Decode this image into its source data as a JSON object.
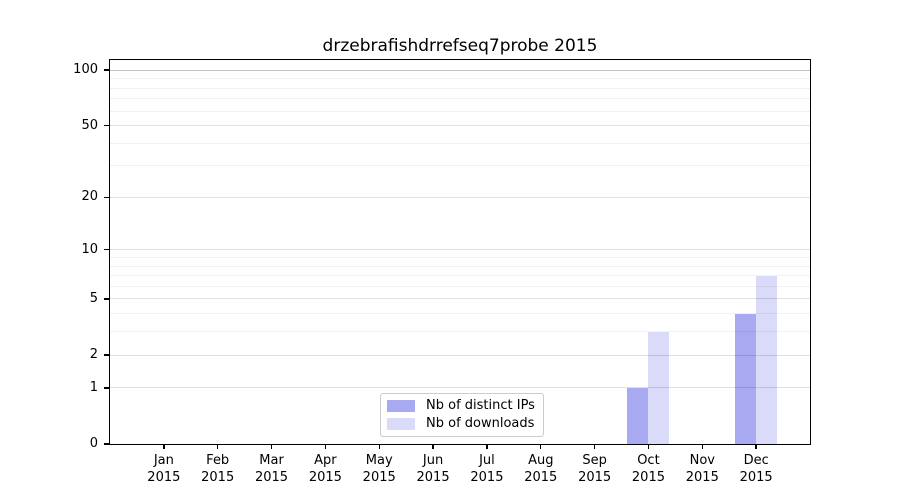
{
  "chart_data": {
    "type": "bar",
    "title": "drzebrafishdrrefseq7probe 2015",
    "xlabel": "",
    "ylabel": "",
    "y_scale": "log1p",
    "ylim": [
      0,
      113.5
    ],
    "y_ticks": [
      0,
      1,
      2,
      5,
      10,
      20,
      50,
      100
    ],
    "y_gridlines_minor": [
      3,
      4,
      6,
      7,
      8,
      9,
      30,
      40,
      60,
      70,
      80,
      90
    ],
    "grid": "horizontal",
    "legend_position": "bottom-center",
    "year": "2015",
    "categories": [
      "Jan",
      "Feb",
      "Mar",
      "Apr",
      "May",
      "Jun",
      "Jul",
      "Aug",
      "Sep",
      "Oct",
      "Nov",
      "Dec"
    ],
    "series": [
      {
        "name": "Nb of distinct IPs",
        "color": "#a9a9f1",
        "values": [
          0,
          0,
          0,
          0,
          0,
          0,
          0,
          0,
          0,
          1,
          0,
          4
        ]
      },
      {
        "name": "Nb of downloads",
        "color": "#dadaf9",
        "values": [
          0,
          0,
          0,
          0,
          0,
          0,
          0,
          0,
          0,
          3,
          0,
          7
        ]
      }
    ]
  }
}
